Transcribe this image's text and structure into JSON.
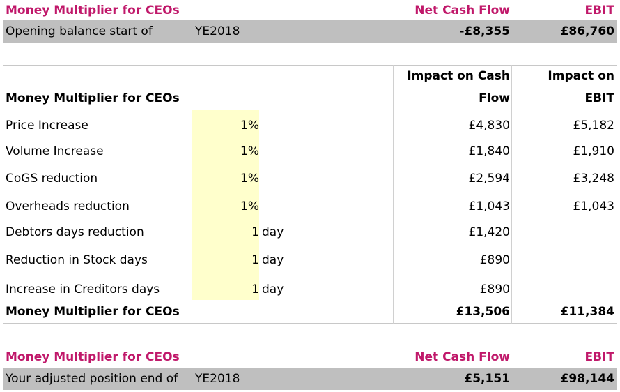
{
  "opening": {
    "title": "Money Multiplier for CEOs",
    "col_cash": "Net Cash Flow",
    "col_ebit": "EBIT",
    "label": "Opening balance start of",
    "year": "YE2018",
    "cash": "-£8,355",
    "ebit": "£86,760"
  },
  "table": {
    "title": "Money Multiplier for CEOs",
    "col_cash_line1": "Impact on Cash",
    "col_cash_line2": "Flow",
    "col_ebit_line1": "Impact on",
    "col_ebit_line2": "EBIT",
    "rows": [
      {
        "label": "Price Increase",
        "value": "1%",
        "unit": "",
        "cash": "£4,830",
        "ebit": "£5,182"
      },
      {
        "label": "Volume Increase",
        "value": "1%",
        "unit": "",
        "cash": "£1,840",
        "ebit": "£1,910"
      },
      {
        "label": "CoGS reduction",
        "value": "1%",
        "unit": "",
        "cash": "£2,594",
        "ebit": "£3,248"
      },
      {
        "label": "Overheads reduction",
        "value": "1%",
        "unit": "",
        "cash": "£1,043",
        "ebit": "£1,043"
      },
      {
        "label": "Debtors days reduction",
        "value": "1",
        "unit": "day",
        "cash": "£1,420",
        "ebit": ""
      },
      {
        "label": "Reduction in Stock days",
        "value": "1",
        "unit": "day",
        "cash": "£890",
        "ebit": ""
      },
      {
        "label": "Increase in Creditors days",
        "value": "1",
        "unit": "day",
        "cash": "£890",
        "ebit": ""
      }
    ],
    "total_label": "Money Multiplier for CEOs",
    "total_cash": "£13,506",
    "total_ebit": "£11,384"
  },
  "adjusted": {
    "title": "Money Multiplier for CEOs",
    "col_cash": "Net Cash Flow",
    "col_ebit": "EBIT",
    "label": "Your adjusted position end of",
    "year": "YE2018",
    "cash": "£5,151",
    "ebit": "£98,144"
  },
  "colors": {
    "accent": "#C0186A",
    "band": "#BFBFBF",
    "input": "#FFFFCC"
  }
}
